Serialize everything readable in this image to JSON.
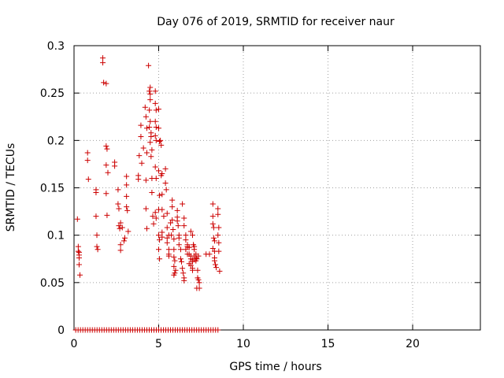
{
  "chart_data": {
    "type": "scatter",
    "title": "Day 076 of 2019, SRMTID for receiver naur",
    "xlabel": "GPS time / hours",
    "ylabel": "SRMTID / TECUs",
    "xlim": [
      0,
      24
    ],
    "ylim": [
      0,
      0.3
    ],
    "x_ticks": [
      0,
      5,
      10,
      15,
      20
    ],
    "x_tick_labels": [
      "0",
      "5",
      "10",
      "15",
      "20"
    ],
    "y_ticks": [
      0,
      0.05,
      0.1,
      0.15,
      0.2,
      0.25,
      0.3
    ],
    "y_tick_labels": [
      "0",
      "0.05",
      "0.1",
      "0.15",
      "0.2",
      "0.25",
      "0.3"
    ],
    "grid": true,
    "marker": "+",
    "series": [
      {
        "name": "SRMTID",
        "color": "#cc0000",
        "points": [
          [
            0.2,
            0.117
          ],
          [
            0.25,
            0.088
          ],
          [
            0.3,
            0.082
          ],
          [
            0.3,
            0.079
          ],
          [
            0.3,
            0.076
          ],
          [
            0.3,
            0.069
          ],
          [
            0.35,
            0.058
          ],
          [
            0.25,
            0.083
          ],
          [
            0.8,
            0.187
          ],
          [
            0.8,
            0.179
          ],
          [
            0.85,
            0.159
          ],
          [
            1.3,
            0.148
          ],
          [
            1.3,
            0.145
          ],
          [
            1.3,
            0.12
          ],
          [
            1.35,
            0.1
          ],
          [
            1.35,
            0.088
          ],
          [
            1.4,
            0.085
          ],
          [
            1.7,
            0.287
          ],
          [
            1.7,
            0.282
          ],
          [
            1.75,
            0.261
          ],
          [
            1.9,
            0.26
          ],
          [
            1.9,
            0.194
          ],
          [
            1.95,
            0.191
          ],
          [
            1.9,
            0.174
          ],
          [
            2.0,
            0.166
          ],
          [
            1.9,
            0.144
          ],
          [
            1.95,
            0.121
          ],
          [
            2.4,
            0.177
          ],
          [
            2.4,
            0.173
          ],
          [
            2.6,
            0.148
          ],
          [
            2.6,
            0.133
          ],
          [
            2.65,
            0.128
          ],
          [
            2.65,
            0.11
          ],
          [
            2.7,
            0.107
          ],
          [
            2.75,
            0.113
          ],
          [
            2.75,
            0.09
          ],
          [
            2.75,
            0.084
          ],
          [
            2.85,
            0.108
          ],
          [
            2.95,
            0.094
          ],
          [
            3.0,
            0.097
          ],
          [
            3.1,
            0.162
          ],
          [
            3.1,
            0.153
          ],
          [
            3.1,
            0.141
          ],
          [
            3.1,
            0.13
          ],
          [
            3.15,
            0.126
          ],
          [
            3.2,
            0.104
          ],
          [
            3.8,
            0.163
          ],
          [
            3.8,
            0.159
          ],
          [
            3.85,
            0.184
          ],
          [
            3.95,
            0.204
          ],
          [
            3.95,
            0.216
          ],
          [
            4.0,
            0.176
          ],
          [
            4.1,
            0.192
          ],
          [
            4.2,
            0.235
          ],
          [
            4.25,
            0.225
          ],
          [
            4.3,
            0.213
          ],
          [
            4.3,
            0.187
          ],
          [
            4.25,
            0.158
          ],
          [
            4.25,
            0.128
          ],
          [
            4.3,
            0.107
          ],
          [
            4.4,
            0.279
          ],
          [
            4.45,
            0.252
          ],
          [
            4.5,
            0.256
          ],
          [
            4.5,
            0.249
          ],
          [
            4.5,
            0.243
          ],
          [
            4.45,
            0.232
          ],
          [
            4.5,
            0.22
          ],
          [
            4.45,
            0.214
          ],
          [
            4.55,
            0.208
          ],
          [
            4.55,
            0.204
          ],
          [
            4.5,
            0.198
          ],
          [
            4.6,
            0.19
          ],
          [
            4.55,
            0.183
          ],
          [
            4.6,
            0.16
          ],
          [
            4.6,
            0.145
          ],
          [
            4.65,
            0.12
          ],
          [
            4.7,
            0.112
          ],
          [
            4.8,
            0.252
          ],
          [
            4.8,
            0.239
          ],
          [
            4.85,
            0.232
          ],
          [
            4.8,
            0.22
          ],
          [
            4.85,
            0.214
          ],
          [
            4.8,
            0.205
          ],
          [
            4.85,
            0.2
          ],
          [
            4.8,
            0.172
          ],
          [
            4.85,
            0.16
          ],
          [
            4.8,
            0.124
          ],
          [
            4.85,
            0.118
          ],
          [
            5.0,
            0.233
          ],
          [
            5.0,
            0.213
          ],
          [
            5.05,
            0.199
          ],
          [
            5.0,
            0.168
          ],
          [
            5.05,
            0.142
          ],
          [
            5.0,
            0.127
          ],
          [
            5.0,
            0.1
          ],
          [
            5.05,
            0.095
          ],
          [
            5.0,
            0.085
          ],
          [
            5.05,
            0.075
          ],
          [
            5.1,
            0.2
          ],
          [
            5.15,
            0.195
          ],
          [
            5.2,
            0.165
          ],
          [
            5.15,
            0.163
          ],
          [
            5.2,
            0.143
          ],
          [
            5.2,
            0.127
          ],
          [
            5.2,
            0.103
          ],
          [
            5.2,
            0.098
          ],
          [
            5.3,
            0.12
          ],
          [
            5.4,
            0.17
          ],
          [
            5.4,
            0.155
          ],
          [
            5.45,
            0.148
          ],
          [
            5.5,
            0.123
          ],
          [
            5.5,
            0.108
          ],
          [
            5.5,
            0.097
          ],
          [
            5.6,
            0.1
          ],
          [
            5.5,
            0.092
          ],
          [
            5.6,
            0.085
          ],
          [
            5.6,
            0.08
          ],
          [
            5.6,
            0.078
          ],
          [
            5.7,
            0.113
          ],
          [
            5.75,
            0.1
          ],
          [
            5.8,
            0.137
          ],
          [
            5.8,
            0.13
          ],
          [
            5.8,
            0.116
          ],
          [
            5.85,
            0.106
          ],
          [
            5.9,
            0.096
          ],
          [
            5.9,
            0.085
          ],
          [
            5.9,
            0.077
          ],
          [
            5.95,
            0.073
          ],
          [
            5.9,
            0.067
          ],
          [
            6.0,
            0.063
          ],
          [
            5.95,
            0.06
          ],
          [
            5.9,
            0.058
          ],
          [
            6.1,
            0.126
          ],
          [
            6.1,
            0.119
          ],
          [
            6.1,
            0.115
          ],
          [
            6.15,
            0.11
          ],
          [
            6.2,
            0.1
          ],
          [
            6.2,
            0.097
          ],
          [
            6.2,
            0.09
          ],
          [
            6.3,
            0.085
          ],
          [
            6.3,
            0.075
          ],
          [
            6.35,
            0.072
          ],
          [
            6.4,
            0.065
          ],
          [
            6.45,
            0.06
          ],
          [
            6.5,
            0.055
          ],
          [
            6.5,
            0.052
          ],
          [
            6.4,
            0.133
          ],
          [
            6.5,
            0.118
          ],
          [
            6.5,
            0.11
          ],
          [
            6.6,
            0.1
          ],
          [
            6.6,
            0.095
          ],
          [
            6.7,
            0.09
          ],
          [
            6.7,
            0.088
          ],
          [
            6.8,
            0.087
          ],
          [
            6.8,
            0.08
          ],
          [
            6.9,
            0.078
          ],
          [
            6.9,
            0.075
          ],
          [
            7.0,
            0.074
          ],
          [
            7.0,
            0.072
          ],
          [
            6.6,
            0.085
          ],
          [
            6.7,
            0.08
          ],
          [
            6.8,
            0.07
          ],
          [
            6.9,
            0.068
          ],
          [
            7.0,
            0.065
          ],
          [
            7.0,
            0.063
          ],
          [
            7.1,
            0.078
          ],
          [
            7.2,
            0.076
          ],
          [
            7.2,
            0.073
          ],
          [
            6.9,
            0.104
          ],
          [
            7.0,
            0.1
          ],
          [
            7.05,
            0.09
          ],
          [
            7.1,
            0.088
          ],
          [
            7.1,
            0.085
          ],
          [
            7.2,
            0.08
          ],
          [
            7.25,
            0.075
          ],
          [
            7.3,
            0.063
          ],
          [
            7.3,
            0.055
          ],
          [
            7.35,
            0.053
          ],
          [
            7.4,
            0.05
          ],
          [
            7.4,
            0.044
          ],
          [
            7.25,
            0.044
          ],
          [
            7.35,
            0.078
          ],
          [
            7.8,
            0.08
          ],
          [
            8.0,
            0.08
          ],
          [
            8.2,
            0.133
          ],
          [
            8.2,
            0.12
          ],
          [
            8.2,
            0.112
          ],
          [
            8.25,
            0.108
          ],
          [
            8.25,
            0.097
          ],
          [
            8.3,
            0.094
          ],
          [
            8.2,
            0.086
          ],
          [
            8.3,
            0.083
          ],
          [
            8.3,
            0.076
          ],
          [
            8.3,
            0.073
          ],
          [
            8.35,
            0.069
          ],
          [
            8.4,
            0.066
          ],
          [
            8.5,
            0.128
          ],
          [
            8.5,
            0.122
          ],
          [
            8.55,
            0.108
          ],
          [
            8.5,
            0.1
          ],
          [
            8.55,
            0.092
          ],
          [
            8.55,
            0.083
          ],
          [
            8.6,
            0.062
          ]
        ]
      }
    ],
    "zero_baseline": {
      "x_range": [
        0.1,
        8.6
      ],
      "step": 0.14,
      "value": 0
    }
  }
}
